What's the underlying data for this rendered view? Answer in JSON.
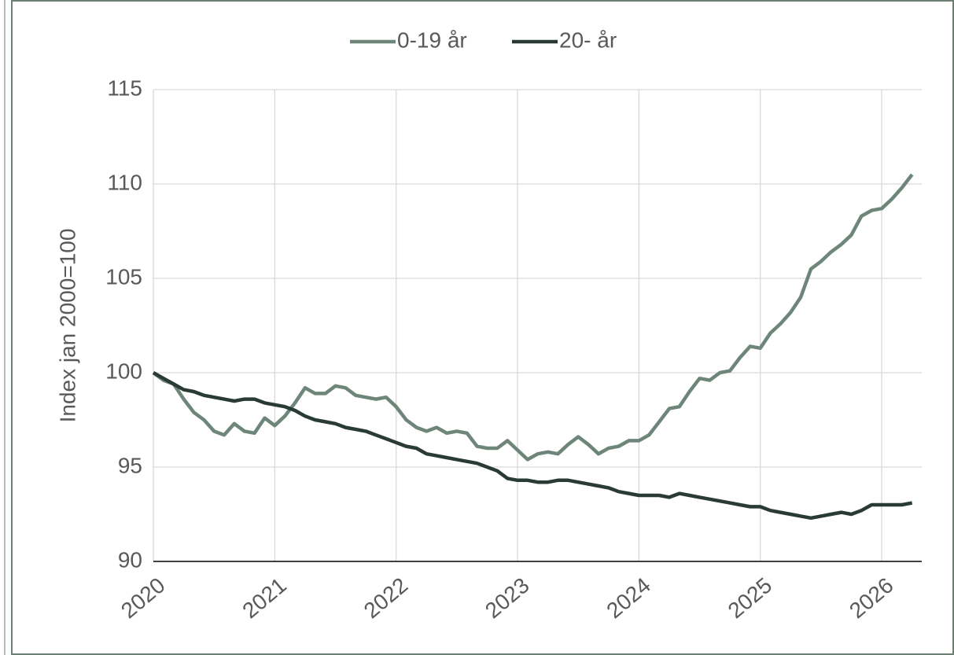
{
  "chart_data": {
    "type": "line",
    "y_label": "Index jan 2000=100",
    "x": [
      2020,
      2020.083,
      2020.167,
      2020.25,
      2020.333,
      2020.417,
      2020.5,
      2020.583,
      2020.667,
      2020.75,
      2020.833,
      2020.917,
      2021,
      2021.083,
      2021.167,
      2021.25,
      2021.333,
      2021.417,
      2021.5,
      2021.583,
      2021.667,
      2021.75,
      2021.833,
      2021.917,
      2022,
      2022.083,
      2022.167,
      2022.25,
      2022.333,
      2022.417,
      2022.5,
      2022.583,
      2022.667,
      2022.75,
      2022.833,
      2022.917,
      2023,
      2023.083,
      2023.167,
      2023.25,
      2023.333,
      2023.417,
      2023.5,
      2023.583,
      2023.667,
      2023.75,
      2023.833,
      2023.917,
      2024,
      2024.083,
      2024.167,
      2024.25,
      2024.333,
      2024.417,
      2024.5,
      2024.583,
      2024.667,
      2024.75,
      2024.833,
      2024.917,
      2025,
      2025.083,
      2025.167,
      2025.25,
      2025.333,
      2025.417,
      2025.5,
      2025.583,
      2025.667,
      2025.75,
      2025.833,
      2025.917,
      2026,
      2026.083,
      2026.167,
      2026.25
    ],
    "series": [
      {
        "name": "0-19 år",
        "color": "#6e8679",
        "values": [
          100,
          99.6,
          99.4,
          98.6,
          97.9,
          97.5,
          96.9,
          96.7,
          97.3,
          96.9,
          96.8,
          97.6,
          97.2,
          97.7,
          98.4,
          99.2,
          98.9,
          98.9,
          99.3,
          99.2,
          98.8,
          98.7,
          98.6,
          98.7,
          98.2,
          97.5,
          97.1,
          96.9,
          97.1,
          96.8,
          96.9,
          96.8,
          96.1,
          96.0,
          96.0,
          96.4,
          95.9,
          95.4,
          95.7,
          95.8,
          95.7,
          96.2,
          96.6,
          96.2,
          95.7,
          96.0,
          96.1,
          96.4,
          96.4,
          96.7,
          97.4,
          98.1,
          98.2,
          99.0,
          99.7,
          99.6,
          100.0,
          100.1,
          100.8,
          101.4,
          101.3,
          102.1,
          102.6,
          103.2,
          104.0,
          105.5,
          105.9,
          106.4,
          106.8,
          107.3,
          108.3,
          108.6,
          108.7,
          109.2,
          109.8,
          110.5
        ]
      },
      {
        "name": "20- år",
        "color": "#2a3b33",
        "values": [
          100,
          99.7,
          99.4,
          99.1,
          99.0,
          98.8,
          98.7,
          98.6,
          98.5,
          98.6,
          98.6,
          98.4,
          98.3,
          98.2,
          98.0,
          97.7,
          97.5,
          97.4,
          97.3,
          97.1,
          97.0,
          96.9,
          96.7,
          96.5,
          96.3,
          96.1,
          96.0,
          95.7,
          95.6,
          95.5,
          95.4,
          95.3,
          95.2,
          95.0,
          94.8,
          94.4,
          94.3,
          94.3,
          94.2,
          94.2,
          94.3,
          94.3,
          94.2,
          94.1,
          94.0,
          93.9,
          93.7,
          93.6,
          93.5,
          93.5,
          93.5,
          93.4,
          93.6,
          93.5,
          93.4,
          93.3,
          93.2,
          93.1,
          93.0,
          92.9,
          92.9,
          92.7,
          92.6,
          92.5,
          92.4,
          92.3,
          92.4,
          92.5,
          92.6,
          92.5,
          92.7,
          93.0,
          93.0,
          93.0,
          93.0,
          93.1
        ]
      }
    ],
    "xlim": [
      2020,
      2026.33
    ],
    "xticks": [
      2020,
      2021,
      2022,
      2023,
      2024,
      2025,
      2026
    ],
    "ylim": [
      90,
      115
    ],
    "yticks": [
      90,
      95,
      100,
      105,
      110,
      115
    ],
    "grid": true,
    "legend": "top"
  }
}
